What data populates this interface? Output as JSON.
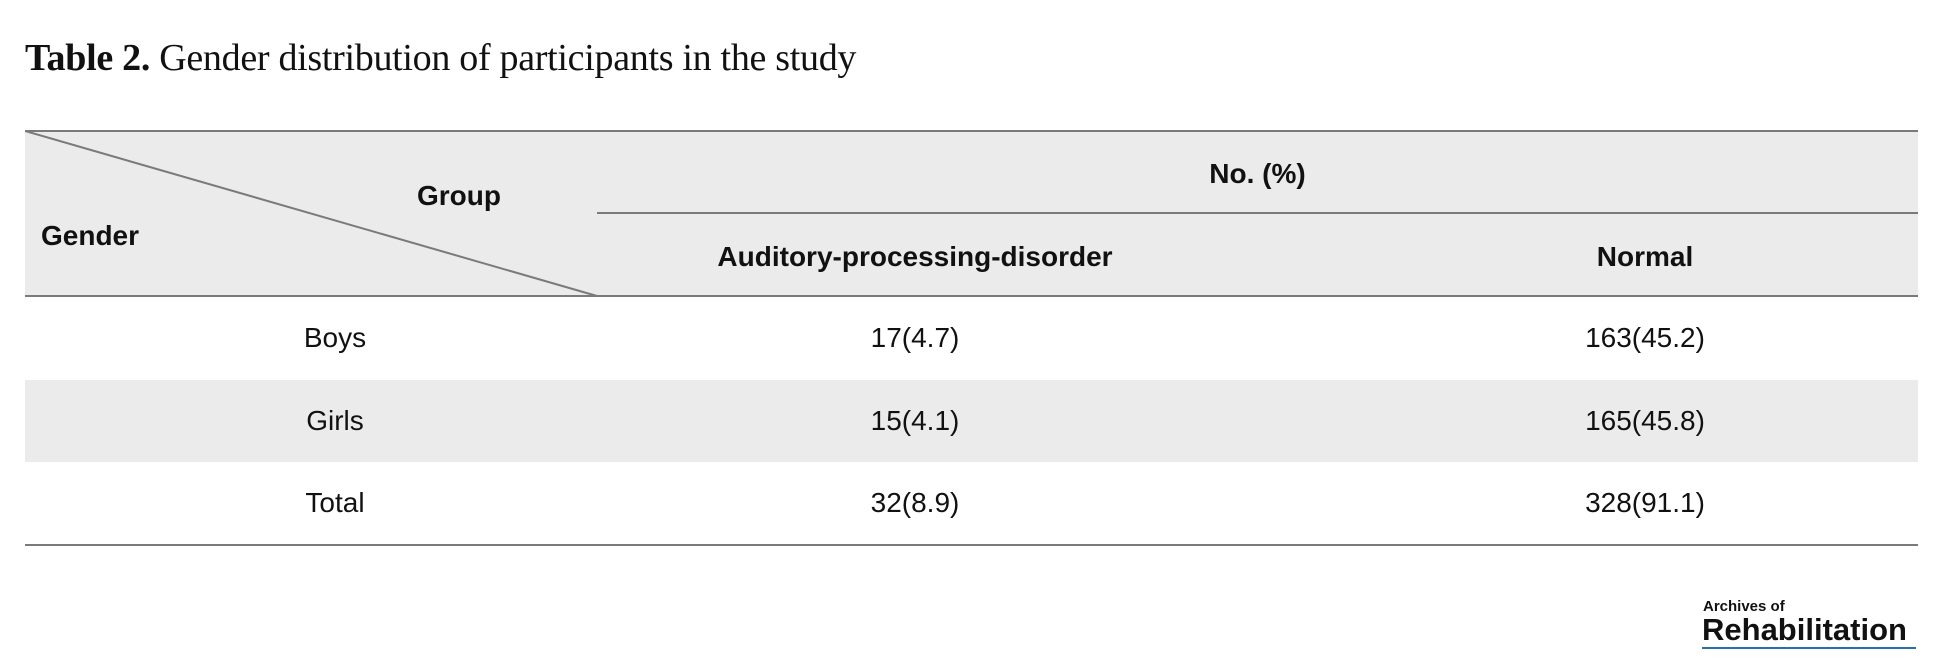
{
  "caption": {
    "label": "Table 2.",
    "text": "Gender distribution of participants in the study"
  },
  "table": {
    "corner_top": "Group",
    "corner_bottom": "Gender",
    "group_header": "No. (%)",
    "columns": [
      "Auditory-processing-disorder",
      "Normal"
    ],
    "rows": [
      {
        "gender": "Boys",
        "apd": "17(4.7)",
        "normal": "163(45.2)"
      },
      {
        "gender": "Girls",
        "apd": "15(4.1)",
        "normal": "165(45.8)"
      },
      {
        "gender": "Total",
        "apd": "32(8.9)",
        "normal": "328(91.1)"
      }
    ]
  },
  "logo": {
    "line1": "Archives of",
    "line2": "Rehabilitation"
  },
  "colors": {
    "header_band": "#ebebeb",
    "rule": "#7a7a7a",
    "logo_underline": "#2a6fa8"
  }
}
